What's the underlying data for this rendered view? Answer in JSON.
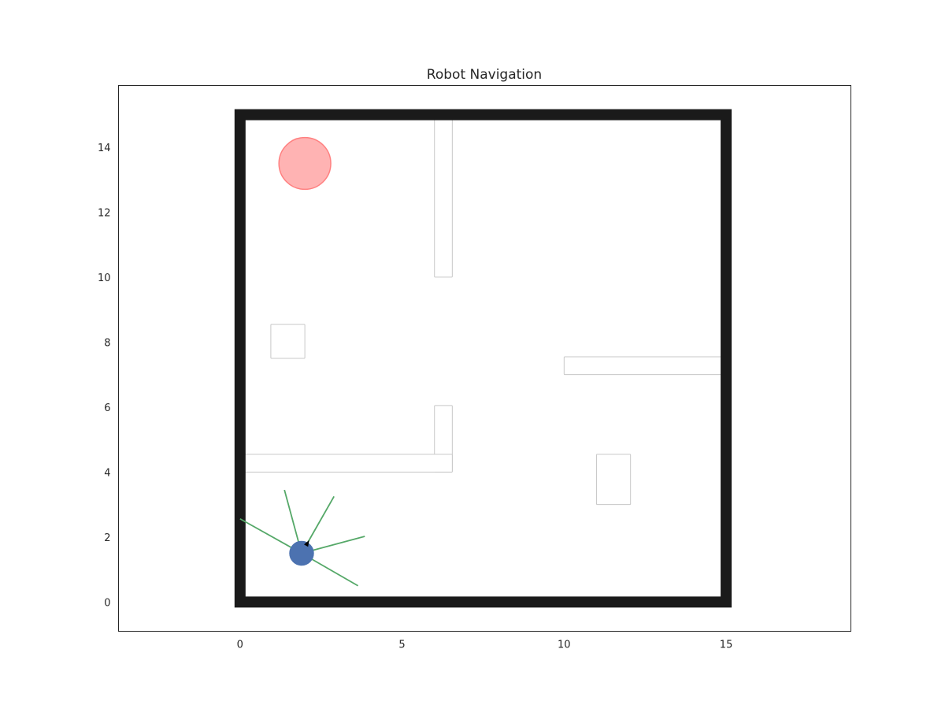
{
  "chart_data": {
    "type": "scatter",
    "title": "Robot Navigation",
    "xlabel": "",
    "ylabel": "",
    "xlim": [
      -3.75,
      18.85
    ],
    "ylim": [
      -0.9,
      15.9
    ],
    "grid": false,
    "x_ticks": [
      {
        "value": 0,
        "label": "0"
      },
      {
        "value": 5,
        "label": "5"
      },
      {
        "value": 10,
        "label": "10"
      },
      {
        "value": 15,
        "label": "15"
      }
    ],
    "y_ticks": [
      {
        "value": 0,
        "label": "0"
      },
      {
        "value": 2,
        "label": "2"
      },
      {
        "value": 4,
        "label": "4"
      },
      {
        "value": 6,
        "label": "6"
      },
      {
        "value": 8,
        "label": "8"
      },
      {
        "value": 10,
        "label": "10"
      },
      {
        "value": 12,
        "label": "12"
      },
      {
        "value": 14,
        "label": "14"
      }
    ],
    "boundary": {
      "x0": 0,
      "y0": 0,
      "x1": 15,
      "y1": 15,
      "color": "#1a1a1a"
    },
    "obstacles": [
      {
        "id": "wall-top-center",
        "x0": 6.0,
        "y0": 10.0,
        "x1": 6.55,
        "y1": 15.0
      },
      {
        "id": "block-left",
        "x0": 0.95,
        "y0": 7.5,
        "x1": 2.0,
        "y1": 8.55
      },
      {
        "id": "wall-right-mid",
        "x0": 10.0,
        "y0": 7.0,
        "x1": 15.0,
        "y1": 7.55
      },
      {
        "id": "wall-center-vertical",
        "x0": 6.0,
        "y0": 4.0,
        "x1": 6.55,
        "y1": 6.05
      },
      {
        "id": "wall-left-horizontal",
        "x0": 0.0,
        "y0": 4.0,
        "x1": 6.55,
        "y1": 4.55
      },
      {
        "id": "block-right",
        "x0": 11.0,
        "y0": 3.0,
        "x1": 12.05,
        "y1": 4.55
      }
    ],
    "goal": {
      "x": 2.0,
      "y": 13.5,
      "radius": 0.8,
      "color": "#ff8080"
    },
    "robot": {
      "x": 1.9,
      "y": 1.5,
      "radius": 0.37,
      "heading_deg": 60,
      "color": "#4c72b0"
    },
    "sensor_rays": {
      "color": "#55a868",
      "endpoints": [
        {
          "x": 0.0,
          "y": 2.56
        },
        {
          "x": 1.37,
          "y": 3.45
        },
        {
          "x": 2.9,
          "y": 3.25
        },
        {
          "x": 3.85,
          "y": 2.02
        },
        {
          "x": 3.64,
          "y": 0.5
        }
      ]
    }
  }
}
